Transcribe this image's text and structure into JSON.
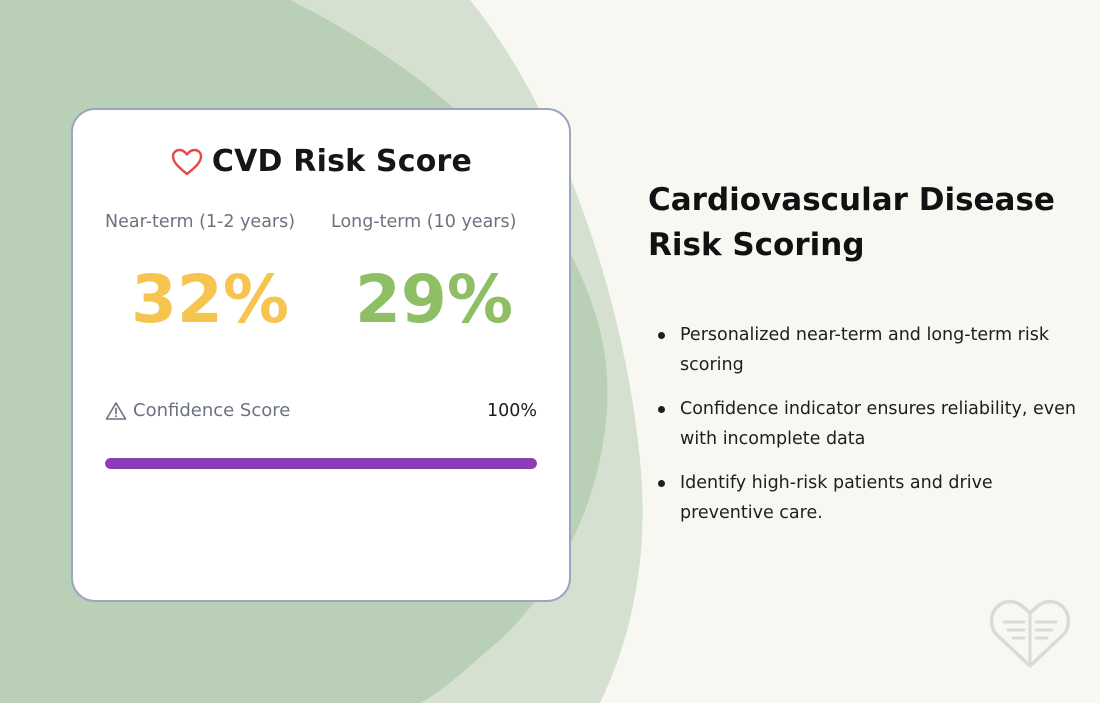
{
  "card": {
    "title": "CVD Risk Score",
    "title_icon": "heart-outline-icon",
    "near_term": {
      "label": "Near-term (1-2 years)",
      "value": "32%",
      "color": "#f5c54f"
    },
    "long_term": {
      "label": "Long-term (10 years)",
      "value": "29%",
      "color": "#8ebf64"
    },
    "confidence": {
      "icon": "warning-triangle-icon",
      "label": "Confidence Score",
      "value": "100%",
      "progress": 1.0,
      "bar_color": "#8b3db4"
    }
  },
  "heading": "Cardiovascular Disease Risk Scoring",
  "bullets": [
    "Personalized near-term and long-term risk scoring",
    "Confidence indicator ensures reliability, even with incomplete data",
    "Identify high-risk patients and drive preventive care."
  ],
  "logo_icon": "heart-document-logo-icon",
  "colors": {
    "page_background": "#f9f7f2",
    "blob_light": "#d5e0d0",
    "blob_dark": "#b9cfb6"
  }
}
